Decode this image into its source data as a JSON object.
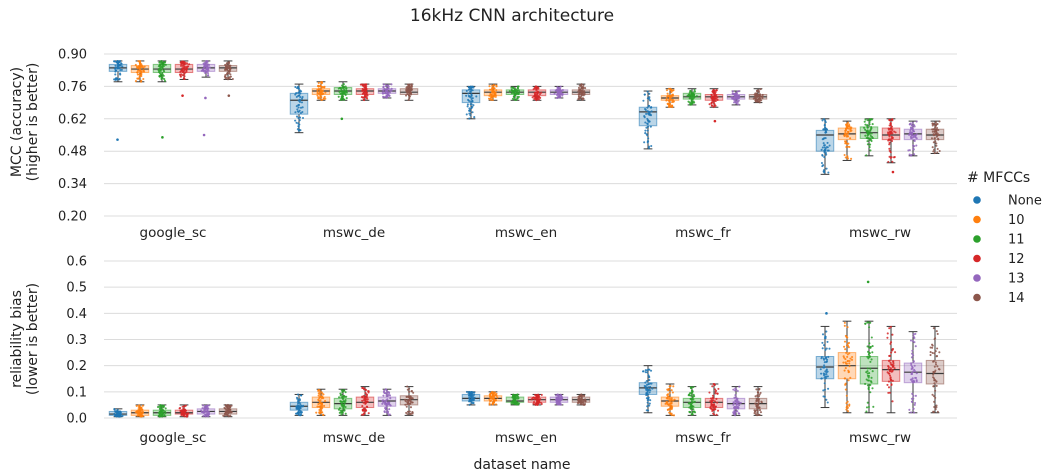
{
  "chart_data": {
    "type": "box",
    "title": "16kHz CNN architecture",
    "xlabel": "dataset name",
    "categories": [
      "google_sc",
      "mswc_de",
      "mswc_en",
      "mswc_fr",
      "mswc_rw"
    ],
    "legend": {
      "title": "# MFCCs",
      "placement": "right",
      "entries": [
        "None",
        "10",
        "11",
        "12",
        "13",
        "14"
      ]
    },
    "colors": {
      "None": "#1f77b4",
      "10": "#ff7f0e",
      "11": "#2ca02c",
      "12": "#d62728",
      "13": "#9467bd",
      "14": "#8c564b"
    },
    "panels": [
      {
        "ylabel_line1": "MCC (accuracy)",
        "ylabel_line2": "(higher is better)",
        "ylim": [
          0.2,
          0.9
        ],
        "yticks": [
          "0.20",
          "0.34",
          "0.48",
          "0.62",
          "0.76",
          "0.90"
        ],
        "grid": true,
        "series": [
          {
            "name": "None",
            "boxes": [
              {
                "min": 0.78,
                "q1": 0.825,
                "median": 0.84,
                "q3": 0.855,
                "max": 0.87
              },
              {
                "min": 0.56,
                "q1": 0.64,
                "median": 0.7,
                "q3": 0.73,
                "max": 0.77
              },
              {
                "min": 0.62,
                "q1": 0.69,
                "median": 0.73,
                "q3": 0.745,
                "max": 0.76
              },
              {
                "min": 0.49,
                "q1": 0.59,
                "median": 0.65,
                "q3": 0.67,
                "max": 0.74
              },
              {
                "min": 0.38,
                "q1": 0.48,
                "median": 0.55,
                "q3": 0.57,
                "max": 0.62
              }
            ]
          },
          {
            "name": "10",
            "boxes": [
              {
                "min": 0.78,
                "q1": 0.82,
                "median": 0.835,
                "q3": 0.85,
                "max": 0.87
              },
              {
                "min": 0.7,
                "q1": 0.725,
                "median": 0.74,
                "q3": 0.75,
                "max": 0.78
              },
              {
                "min": 0.7,
                "q1": 0.72,
                "median": 0.735,
                "q3": 0.745,
                "max": 0.77
              },
              {
                "min": 0.67,
                "q1": 0.7,
                "median": 0.71,
                "q3": 0.72,
                "max": 0.75
              },
              {
                "min": 0.44,
                "q1": 0.53,
                "median": 0.555,
                "q3": 0.58,
                "max": 0.61
              }
            ]
          },
          {
            "name": "11",
            "boxes": [
              {
                "min": 0.78,
                "q1": 0.82,
                "median": 0.835,
                "q3": 0.855,
                "max": 0.87
              },
              {
                "min": 0.7,
                "q1": 0.725,
                "median": 0.74,
                "q3": 0.755,
                "max": 0.78
              },
              {
                "min": 0.7,
                "q1": 0.725,
                "median": 0.735,
                "q3": 0.745,
                "max": 0.76
              },
              {
                "min": 0.68,
                "q1": 0.705,
                "median": 0.715,
                "q3": 0.73,
                "max": 0.75
              },
              {
                "min": 0.46,
                "q1": 0.535,
                "median": 0.56,
                "q3": 0.585,
                "max": 0.62
              }
            ]
          },
          {
            "name": "12",
            "boxes": [
              {
                "min": 0.79,
                "q1": 0.82,
                "median": 0.835,
                "q3": 0.855,
                "max": 0.87
              },
              {
                "min": 0.7,
                "q1": 0.725,
                "median": 0.74,
                "q3": 0.75,
                "max": 0.77
              },
              {
                "min": 0.7,
                "q1": 0.72,
                "median": 0.735,
                "q3": 0.745,
                "max": 0.76
              },
              {
                "min": 0.67,
                "q1": 0.7,
                "median": 0.715,
                "q3": 0.725,
                "max": 0.75
              },
              {
                "min": 0.43,
                "q1": 0.53,
                "median": 0.55,
                "q3": 0.58,
                "max": 0.62
              }
            ]
          },
          {
            "name": "13",
            "boxes": [
              {
                "min": 0.8,
                "q1": 0.825,
                "median": 0.84,
                "q3": 0.855,
                "max": 0.87
              },
              {
                "min": 0.71,
                "q1": 0.73,
                "median": 0.74,
                "q3": 0.75,
                "max": 0.77
              },
              {
                "min": 0.71,
                "q1": 0.725,
                "median": 0.735,
                "q3": 0.745,
                "max": 0.76
              },
              {
                "min": 0.68,
                "q1": 0.705,
                "median": 0.715,
                "q3": 0.725,
                "max": 0.74
              },
              {
                "min": 0.46,
                "q1": 0.53,
                "median": 0.555,
                "q3": 0.575,
                "max": 0.61
              }
            ]
          },
          {
            "name": "14",
            "boxes": [
              {
                "min": 0.79,
                "q1": 0.825,
                "median": 0.84,
                "q3": 0.85,
                "max": 0.87
              },
              {
                "min": 0.7,
                "q1": 0.725,
                "median": 0.735,
                "q3": 0.75,
                "max": 0.77
              },
              {
                "min": 0.7,
                "q1": 0.725,
                "median": 0.735,
                "q3": 0.745,
                "max": 0.77
              },
              {
                "min": 0.69,
                "q1": 0.705,
                "median": 0.715,
                "q3": 0.725,
                "max": 0.75
              },
              {
                "min": 0.47,
                "q1": 0.53,
                "median": 0.55,
                "q3": 0.575,
                "max": 0.61
              }
            ]
          }
        ],
        "outliers": [
          {
            "series": "None",
            "category": "google_sc",
            "y": 0.53
          },
          {
            "series": "11",
            "category": "google_sc",
            "y": 0.54
          },
          {
            "series": "13",
            "category": "google_sc",
            "y": 0.55
          },
          {
            "series": "12",
            "category": "google_sc",
            "y": 0.72
          },
          {
            "series": "13",
            "category": "google_sc",
            "y": 0.71
          },
          {
            "series": "14",
            "category": "google_sc",
            "y": 0.72
          },
          {
            "series": "11",
            "category": "mswc_de",
            "y": 0.62
          },
          {
            "series": "12",
            "category": "mswc_fr",
            "y": 0.61
          },
          {
            "series": "12",
            "category": "mswc_rw",
            "y": 0.39
          }
        ]
      },
      {
        "ylabel_line1": "reliability bias",
        "ylabel_line2": "(lower is better)",
        "ylim": [
          0,
          0.6
        ],
        "yticks": [
          "0.0",
          "0.1",
          "0.2",
          "0.3",
          "0.4",
          "0.5",
          "0.6"
        ],
        "grid": true,
        "series": [
          {
            "name": "None",
            "boxes": [
              {
                "min": 0.005,
                "q1": 0.01,
                "median": 0.015,
                "q3": 0.025,
                "max": 0.035
              },
              {
                "min": 0.01,
                "q1": 0.03,
                "median": 0.045,
                "q3": 0.06,
                "max": 0.09
              },
              {
                "min": 0.05,
                "q1": 0.065,
                "median": 0.075,
                "q3": 0.09,
                "max": 0.1
              },
              {
                "min": 0.02,
                "q1": 0.09,
                "median": 0.115,
                "q3": 0.135,
                "max": 0.2
              },
              {
                "min": 0.04,
                "q1": 0.15,
                "median": 0.195,
                "q3": 0.235,
                "max": 0.35
              }
            ]
          },
          {
            "name": "10",
            "boxes": [
              {
                "min": 0.005,
                "q1": 0.01,
                "median": 0.02,
                "q3": 0.03,
                "max": 0.05
              },
              {
                "min": 0.01,
                "q1": 0.04,
                "median": 0.06,
                "q3": 0.08,
                "max": 0.11
              },
              {
                "min": 0.05,
                "q1": 0.065,
                "median": 0.075,
                "q3": 0.085,
                "max": 0.1
              },
              {
                "min": 0.01,
                "q1": 0.045,
                "median": 0.065,
                "q3": 0.08,
                "max": 0.13
              },
              {
                "min": 0.02,
                "q1": 0.15,
                "median": 0.2,
                "q3": 0.25,
                "max": 0.37
              }
            ]
          },
          {
            "name": "11",
            "boxes": [
              {
                "min": 0.005,
                "q1": 0.01,
                "median": 0.02,
                "q3": 0.03,
                "max": 0.05
              },
              {
                "min": 0.01,
                "q1": 0.035,
                "median": 0.055,
                "q3": 0.075,
                "max": 0.11
              },
              {
                "min": 0.05,
                "q1": 0.06,
                "median": 0.065,
                "q3": 0.08,
                "max": 0.09
              },
              {
                "min": 0.01,
                "q1": 0.04,
                "median": 0.06,
                "q3": 0.075,
                "max": 0.12
              },
              {
                "min": 0.02,
                "q1": 0.13,
                "median": 0.19,
                "q3": 0.235,
                "max": 0.37
              }
            ]
          },
          {
            "name": "12",
            "boxes": [
              {
                "min": 0.005,
                "q1": 0.015,
                "median": 0.02,
                "q3": 0.03,
                "max": 0.05
              },
              {
                "min": 0.01,
                "q1": 0.04,
                "median": 0.06,
                "q3": 0.08,
                "max": 0.12
              },
              {
                "min": 0.05,
                "q1": 0.06,
                "median": 0.07,
                "q3": 0.08,
                "max": 0.09
              },
              {
                "min": 0.01,
                "q1": 0.04,
                "median": 0.06,
                "q3": 0.075,
                "max": 0.13
              },
              {
                "min": 0.02,
                "q1": 0.14,
                "median": 0.185,
                "q3": 0.22,
                "max": 0.35
              }
            ]
          },
          {
            "name": "13",
            "boxes": [
              {
                "min": 0.005,
                "q1": 0.015,
                "median": 0.025,
                "q3": 0.035,
                "max": 0.05
              },
              {
                "min": 0.01,
                "q1": 0.045,
                "median": 0.065,
                "q3": 0.08,
                "max": 0.11
              },
              {
                "min": 0.05,
                "q1": 0.06,
                "median": 0.07,
                "q3": 0.08,
                "max": 0.09
              },
              {
                "min": 0.01,
                "q1": 0.035,
                "median": 0.055,
                "q3": 0.075,
                "max": 0.12
              },
              {
                "min": 0.02,
                "q1": 0.135,
                "median": 0.175,
                "q3": 0.21,
                "max": 0.33
              }
            ]
          },
          {
            "name": "14",
            "boxes": [
              {
                "min": 0.005,
                "q1": 0.015,
                "median": 0.025,
                "q3": 0.035,
                "max": 0.05
              },
              {
                "min": 0.01,
                "q1": 0.05,
                "median": 0.07,
                "q3": 0.085,
                "max": 0.12
              },
              {
                "min": 0.05,
                "q1": 0.06,
                "median": 0.07,
                "q3": 0.08,
                "max": 0.09
              },
              {
                "min": 0.01,
                "q1": 0.035,
                "median": 0.055,
                "q3": 0.075,
                "max": 0.12
              },
              {
                "min": 0.02,
                "q1": 0.13,
                "median": 0.17,
                "q3": 0.22,
                "max": 0.35
              }
            ]
          }
        ],
        "outliers": [
          {
            "series": "11",
            "category": "mswc_rw",
            "y": 0.52
          },
          {
            "series": "None",
            "category": "mswc_rw",
            "y": 0.4
          }
        ]
      }
    ]
  }
}
